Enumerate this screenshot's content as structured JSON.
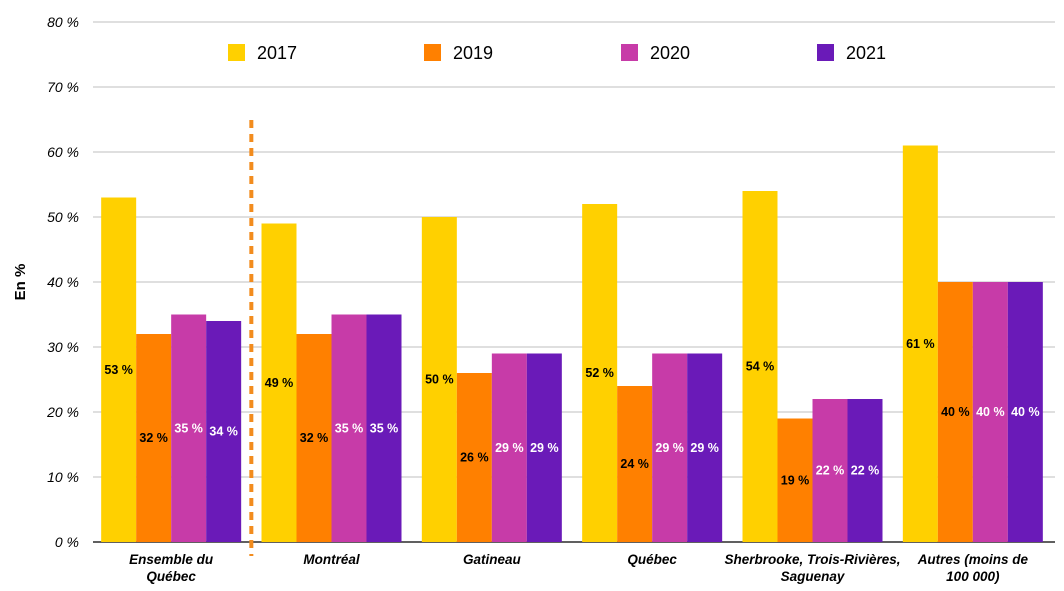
{
  "chart_data": {
    "type": "bar",
    "ylabel": "En %",
    "ylim": [
      0,
      80
    ],
    "ytick_labels": [
      "0 %",
      "10 %",
      "20 %",
      "30 %",
      "40 %",
      "50 %",
      "60 %",
      "70 %",
      "80 %"
    ],
    "legend_position": "top",
    "grid": true,
    "categories": [
      [
        "Ensemble du",
        "Québec"
      ],
      [
        "Montréal"
      ],
      [
        "Gatineau"
      ],
      [
        "Québec"
      ],
      [
        "Sherbrooke, Trois-Rivières,",
        "Saguenay"
      ],
      [
        "Autres (moins de",
        "100 000)"
      ]
    ],
    "series": [
      {
        "name": "2017",
        "color": "#FFD000",
        "values": [
          53,
          49,
          50,
          52,
          54,
          61
        ],
        "labels": [
          "53 %",
          "49 %",
          "50 %",
          "52 %",
          "54 %",
          "61 %"
        ],
        "label_color": "#000000"
      },
      {
        "name": "2019",
        "color": "#FF8000",
        "values": [
          32,
          32,
          26,
          24,
          19,
          40
        ],
        "labels": [
          "32 %",
          "32 %",
          "26 %",
          "24 %",
          "19 %",
          "40 %"
        ],
        "label_color": "#000000"
      },
      {
        "name": "2020",
        "color": "#C73BA8",
        "values": [
          35,
          35,
          29,
          29,
          22,
          40
        ],
        "labels": [
          "35 %",
          "35 %",
          "29 %",
          "29 %",
          "22 %",
          "40 %"
        ],
        "label_color": "#ffffff"
      },
      {
        "name": "2021",
        "color": "#6A1AB8",
        "values": [
          34,
          35,
          29,
          29,
          22,
          40
        ],
        "labels": [
          "34 %",
          "35 %",
          "29 %",
          "29 %",
          "22 %",
          "40 %"
        ],
        "label_color": "#ffffff"
      }
    ],
    "separator_color": "#F28C1E",
    "separator_after_category": 0
  }
}
